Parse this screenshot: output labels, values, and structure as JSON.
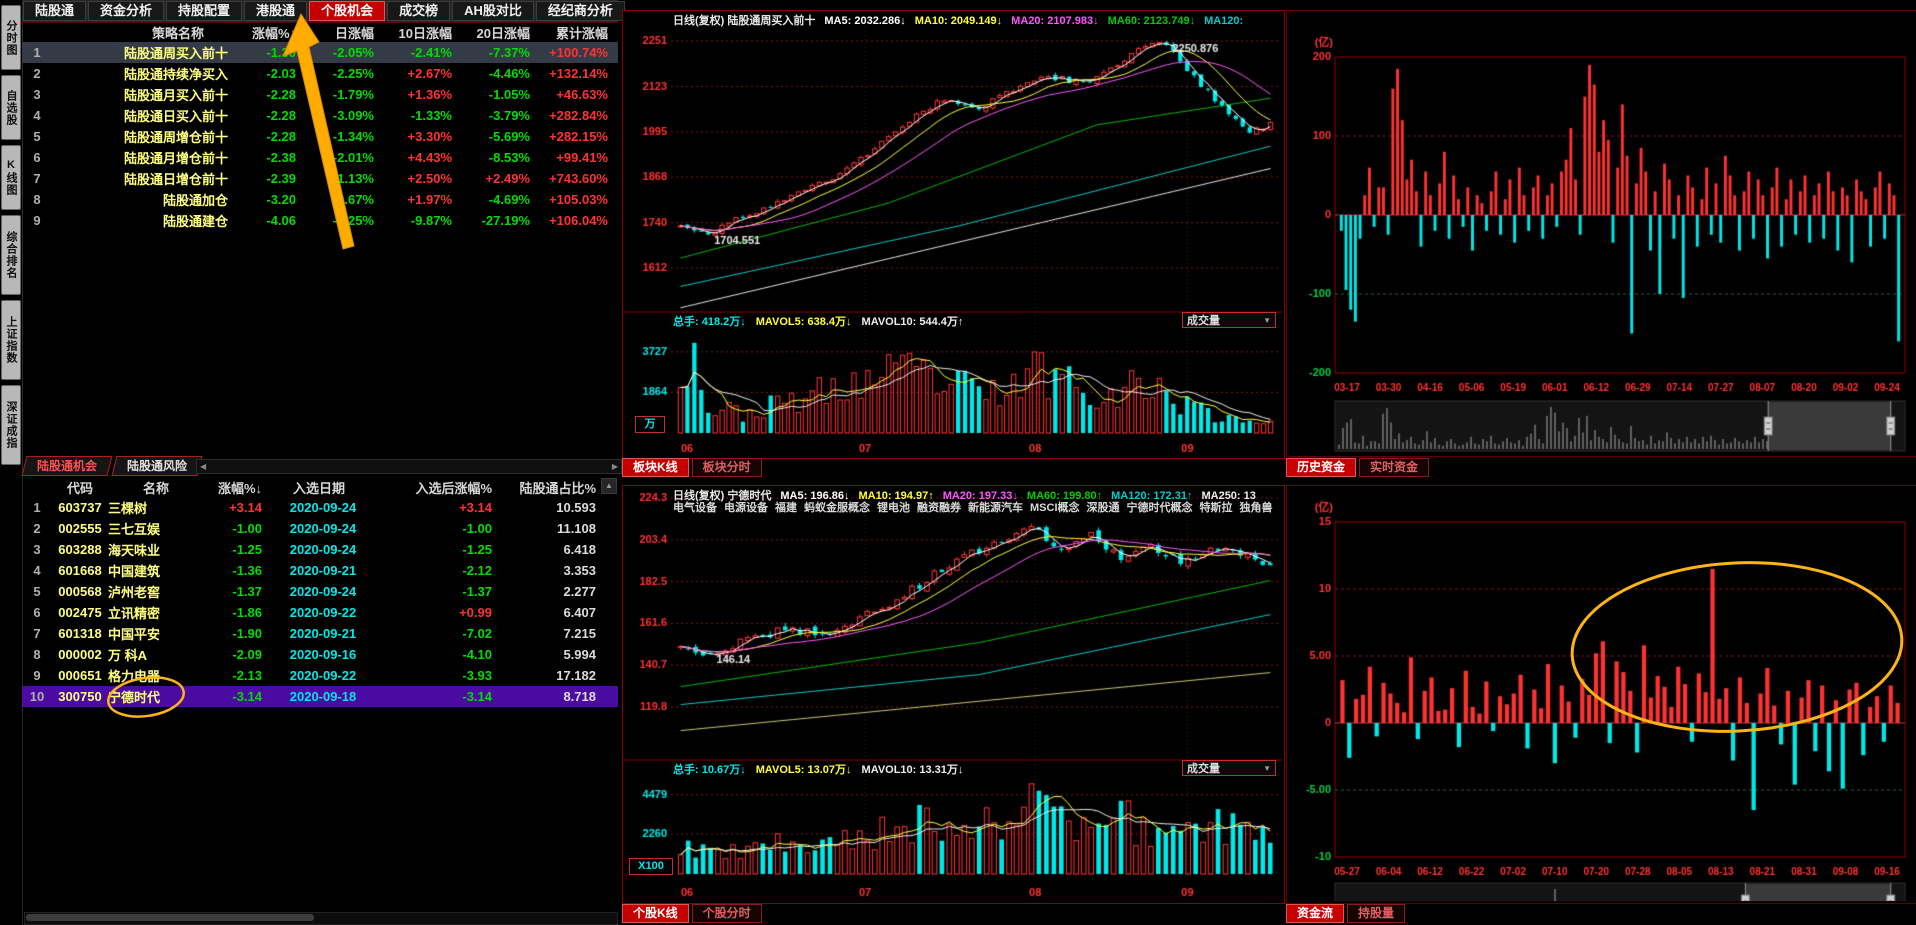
{
  "colors": {
    "positive": "#ff3232",
    "negative": "#00dd00",
    "cyan": "#00e8e8",
    "name_yellow": "#ffff80",
    "accent_red": "#c40000",
    "selected_row": "#343b46",
    "highlight_row": "#4b0aa2",
    "annotation": "#ffae00"
  },
  "sidebar": {
    "items": [
      "分时图",
      "自选股",
      "K线图",
      "综合排名",
      "上证指数",
      "深证成指"
    ]
  },
  "menubar": {
    "items": [
      "陆股通",
      "资金分析",
      "持股配置",
      "港股通",
      "个股机会",
      "成交榜",
      "AH股对比",
      "经纪商分析"
    ],
    "active": "个股机会"
  },
  "strategy_table": {
    "columns": [
      "策略名称",
      "涨幅%↓",
      "日涨幅",
      "10日涨幅",
      "20日涨幅",
      "累计涨幅"
    ],
    "selected_row": 1,
    "rows": [
      {
        "no": 1,
        "name": "陆股通周买入前十",
        "chg": "-1.30",
        "d1": "-2.05%",
        "d10": "-2.41%",
        "d20": "-7.37%",
        "total": "+100.74%"
      },
      {
        "no": 2,
        "name": "陆股通持续净买入",
        "chg": "-2.03",
        "d1": "-2.25%",
        "d10": "+2.67%",
        "d20": "-4.46%",
        "total": "+132.14%"
      },
      {
        "no": 3,
        "name": "陆股通月买入前十",
        "chg": "-2.28",
        "d1": "-1.79%",
        "d10": "+1.36%",
        "d20": "-1.05%",
        "total": "+46.63%"
      },
      {
        "no": 4,
        "name": "陆股通日买入前十",
        "chg": "-2.28",
        "d1": "-3.09%",
        "d10": "-1.33%",
        "d20": "-3.79%",
        "total": "+282.84%"
      },
      {
        "no": 5,
        "name": "陆股通周增仓前十",
        "chg": "-2.28",
        "d1": "-1.34%",
        "d10": "+3.30%",
        "d20": "-5.69%",
        "total": "+282.15%"
      },
      {
        "no": 6,
        "name": "陆股通月增仓前十",
        "chg": "-2.38",
        "d1": "-2.01%",
        "d10": "+4.43%",
        "d20": "-8.53%",
        "total": "+99.41%"
      },
      {
        "no": 7,
        "name": "陆股通日增仓前十",
        "chg": "-2.39",
        "d1": "-1.13%",
        "d10": "+2.50%",
        "d20": "+2.49%",
        "total": "+743.60%"
      },
      {
        "no": 8,
        "name": "陆股通加仓",
        "chg": "-3.20",
        "d1": "-2.67%",
        "d10": "+1.97%",
        "d20": "-4.69%",
        "total": "+105.03%"
      },
      {
        "no": 9,
        "name": "陆股通建仓",
        "chg": "-4.06",
        "d1": "-2.25%",
        "d10": "-9.87%",
        "d20": "-27.19%",
        "total": "+106.04%"
      }
    ]
  },
  "left_tabs": {
    "items": [
      "陆股通机会",
      "陆股通风险"
    ],
    "active": 0
  },
  "opportunity_table": {
    "columns": [
      "代码",
      "名称",
      "涨幅%↓",
      "入选日期",
      "入选后涨幅%",
      "陆股通占比%"
    ],
    "selected_row": 10,
    "rows": [
      {
        "no": 1,
        "code": "603737",
        "name": "三棵树",
        "chg": "+3.14",
        "date": "2020-09-24",
        "after": "+3.14",
        "ratio": "10.593"
      },
      {
        "no": 2,
        "code": "002555",
        "name": "三七互娱",
        "chg": "-1.00",
        "date": "2020-09-24",
        "after": "-1.00",
        "ratio": "11.108"
      },
      {
        "no": 3,
        "code": "603288",
        "name": "海天味业",
        "chg": "-1.25",
        "date": "2020-09-24",
        "after": "-1.25",
        "ratio": "6.418"
      },
      {
        "no": 4,
        "code": "601668",
        "name": "中国建筑",
        "chg": "-1.36",
        "date": "2020-09-21",
        "after": "-2.12",
        "ratio": "3.353"
      },
      {
        "no": 5,
        "code": "000568",
        "name": "泸州老窖",
        "chg": "-1.37",
        "date": "2020-09-24",
        "after": "-1.37",
        "ratio": "2.277"
      },
      {
        "no": 6,
        "code": "002475",
        "name": "立讯精密",
        "chg": "-1.86",
        "date": "2020-09-22",
        "after": "+0.99",
        "ratio": "6.407"
      },
      {
        "no": 7,
        "code": "601318",
        "name": "中国平安",
        "chg": "-1.90",
        "date": "2020-09-21",
        "after": "-7.02",
        "ratio": "7.215"
      },
      {
        "no": 8,
        "code": "000002",
        "name": "万 科A",
        "chg": "-2.09",
        "date": "2020-09-16",
        "after": "-4.10",
        "ratio": "5.994"
      },
      {
        "no": 9,
        "code": "000651",
        "name": "格力电器",
        "chg": "-2.13",
        "date": "2020-09-22",
        "after": "-3.93",
        "ratio": "17.182"
      },
      {
        "no": 10,
        "code": "300750",
        "name": "宁德时代",
        "chg": "-3.14",
        "date": "2020-09-18",
        "after": "-3.14",
        "ratio": "8.718"
      }
    ]
  },
  "mid_top_chart": {
    "title_tokens": [
      {
        "text": "日线(复权) 陆股通周买入前十",
        "color": "#e8e8e8"
      },
      {
        "text": "MA5: 2032.286↓",
        "color": "#ffffff"
      },
      {
        "text": "MA10: 2049.149↓",
        "color": "#ffff33"
      },
      {
        "text": "MA20: 2107.983↓",
        "color": "#ff55ff"
      },
      {
        "text": "MA60: 2123.749↓",
        "color": "#00cc00"
      },
      {
        "text": "MA120:",
        "color": "#00cccc"
      }
    ],
    "vol_tokens": [
      {
        "text": "总手: 418.2万↓",
        "color": "#00e8e8"
      },
      {
        "text": "MAVOL5: 638.4万↓",
        "color": "#ffff33"
      },
      {
        "text": "MAVOL10: 544.4万↑",
        "color": "#eeeeee"
      }
    ],
    "volume_dropdown": "成交量",
    "unit": "万",
    "yticks": [
      2251,
      2123,
      1995,
      1868,
      1740,
      1612
    ],
    "vol_yticks": [
      3727,
      1864
    ],
    "xticks": [
      {
        "label": "06",
        "f": 0.012
      },
      {
        "label": "07",
        "f": 0.315
      },
      {
        "label": "08",
        "f": 0.6
      },
      {
        "label": "09",
        "f": 0.855
      }
    ],
    "chart_data": {
      "type": "candlestick",
      "n": 86,
      "seed": 11,
      "jitter": 17,
      "keyframes": [
        [
          0,
          1730
        ],
        [
          4,
          1707
        ],
        [
          10,
          1765
        ],
        [
          16,
          1812
        ],
        [
          22,
          1862
        ],
        [
          28,
          1950
        ],
        [
          33,
          2030
        ],
        [
          38,
          2088
        ],
        [
          43,
          2062
        ],
        [
          48,
          2115
        ],
        [
          53,
          2150
        ],
        [
          58,
          2132
        ],
        [
          63,
          2185
        ],
        [
          67,
          2238
        ],
        [
          70,
          2246
        ],
        [
          74,
          2150
        ],
        [
          78,
          2062
        ],
        [
          82,
          2000
        ],
        [
          85,
          2015
        ]
      ],
      "pins": [
        {
          "i": 4,
          "type": "low",
          "v": 1704.551,
          "text": "1704.551"
        },
        {
          "i": 70,
          "type": "high",
          "v": 2250.876,
          "text": "2250.876"
        }
      ],
      "trend_lines": [
        {
          "keyframes": [
            [
              0,
              1640
            ],
            [
              30,
              1795
            ],
            [
              60,
              2015
            ],
            [
              85,
              2090
            ]
          ],
          "color": "#00bb00"
        },
        {
          "keyframes": [
            [
              0,
              1560
            ],
            [
              40,
              1730
            ],
            [
              85,
              1955
            ]
          ],
          "color": "#00cccc"
        },
        {
          "keyframes": [
            [
              0,
              1500
            ],
            [
              85,
              1892
            ]
          ],
          "color": "#e8e8e8"
        }
      ],
      "volume_envelope": [
        [
          0,
          3300
        ],
        [
          2,
          3700
        ],
        [
          4,
          1100
        ],
        [
          10,
          900
        ],
        [
          16,
          1500
        ],
        [
          22,
          1900
        ],
        [
          28,
          2500
        ],
        [
          34,
          2700
        ],
        [
          40,
          2100
        ],
        [
          46,
          1700
        ],
        [
          52,
          2950
        ],
        [
          56,
          2500
        ],
        [
          62,
          1800
        ],
        [
          68,
          2300
        ],
        [
          72,
          1400
        ],
        [
          78,
          750
        ],
        [
          85,
          520
        ]
      ],
      "vol_seed": 23
    }
  },
  "mid_top_tabs": {
    "items": [
      "板块K线",
      "板块分时"
    ],
    "active": 0
  },
  "mid_bottom_chart": {
    "title_tokens": [
      {
        "text": "日线(复权) 宁德时代",
        "color": "#e8e8e8"
      },
      {
        "text": "MA5: 196.86↓",
        "color": "#ffffff"
      },
      {
        "text": "MA10: 194.97↑",
        "color": "#ffff33"
      },
      {
        "text": "MA20: 197.33↓",
        "color": "#ff55ff"
      },
      {
        "text": "MA60: 199.80↑",
        "color": "#00cc00"
      },
      {
        "text": "MA120: 172.31↑",
        "color": "#00cccc"
      },
      {
        "text": "MA250: 13",
        "color": "#eeeeee"
      }
    ],
    "tags": [
      "电气设备",
      "电源设备",
      "福建",
      "蚂蚁金服概念",
      "锂电池",
      "融资融券",
      "新能源汽车",
      "MSCI概念",
      "深股通",
      "宁德时代概念",
      "特斯拉",
      "独角兽"
    ],
    "vol_tokens": [
      {
        "text": "总手: 10.67万↓",
        "color": "#00e8e8"
      },
      {
        "text": "MAVOL5: 13.07万↓",
        "color": "#ffff33"
      },
      {
        "text": "MAVOL10: 13.31万↓",
        "color": "#eeeeee"
      }
    ],
    "volume_dropdown": "成交量",
    "unit": "X100",
    "yticks": [
      224.3,
      203.4,
      182.5,
      161.6,
      140.7,
      119.8
    ],
    "vol_yticks": [
      4479,
      2260
    ],
    "xticks": [
      {
        "label": "06",
        "f": 0.012
      },
      {
        "label": "07",
        "f": 0.315
      },
      {
        "label": "08",
        "f": 0.6
      },
      {
        "label": "09",
        "f": 0.855
      }
    ],
    "chart_data": {
      "type": "candlestick",
      "n": 80,
      "seed": 5,
      "jitter": 4,
      "keyframes": [
        [
          0,
          149
        ],
        [
          4,
          147
        ],
        [
          9,
          153
        ],
        [
          14,
          159
        ],
        [
          19,
          156
        ],
        [
          24,
          164
        ],
        [
          29,
          173
        ],
        [
          34,
          186
        ],
        [
          39,
          197
        ],
        [
          44,
          205
        ],
        [
          47,
          211
        ],
        [
          51,
          198
        ],
        [
          55,
          207
        ],
        [
          59,
          194
        ],
        [
          63,
          201
        ],
        [
          67,
          192
        ],
        [
          71,
          199
        ],
        [
          75,
          197
        ],
        [
          79,
          191
        ]
      ],
      "pins": [
        {
          "i": 4,
          "type": "low",
          "v": 146.14,
          "text": "146.14"
        }
      ],
      "trend_lines": [
        {
          "keyframes": [
            [
              0,
              130
            ],
            [
              40,
              152
            ],
            [
              79,
              183
            ]
          ],
          "color": "#00bb00"
        },
        {
          "keyframes": [
            [
              0,
              121
            ],
            [
              40,
              136
            ],
            [
              79,
              166
            ]
          ],
          "color": "#00cccc"
        },
        {
          "keyframes": [
            [
              0,
              108
            ],
            [
              79,
              137
            ]
          ],
          "color": "#cccc77"
        }
      ],
      "volume_envelope": [
        [
          0,
          1500
        ],
        [
          6,
          1100
        ],
        [
          12,
          1700
        ],
        [
          18,
          1300
        ],
        [
          24,
          2100
        ],
        [
          30,
          2700
        ],
        [
          34,
          3300
        ],
        [
          38,
          2400
        ],
        [
          44,
          2900
        ],
        [
          48,
          4400
        ],
        [
          54,
          2300
        ],
        [
          60,
          3000
        ],
        [
          66,
          1900
        ],
        [
          72,
          2600
        ],
        [
          79,
          2100
        ]
      ],
      "vol_seed": 9
    }
  },
  "mid_bottom_tabs": {
    "items": [
      "个股K线",
      "个股分时"
    ],
    "active": 0
  },
  "right_top_chart": {
    "unit": "(亿)",
    "yticks": [
      "200",
      "100",
      "0",
      "-100",
      "-200"
    ],
    "dates": [
      "03-17",
      "03-30",
      "04-16",
      "05-06",
      "05-19",
      "06-01",
      "06-12",
      "06-29",
      "07-14",
      "07-27",
      "08-07",
      "08-20",
      "09-02",
      "09-24"
    ],
    "nav": {
      "h1": 0.76,
      "h2": 0.975
    },
    "chart_data": {
      "type": "bar",
      "unit": "亿",
      "values": [
        -20,
        -95,
        -120,
        -135,
        -30,
        25,
        60,
        -15,
        35,
        35,
        -25,
        160,
        185,
        120,
        45,
        70,
        30,
        -40,
        55,
        25,
        -20,
        40,
        80,
        -30,
        50,
        20,
        -15,
        35,
        -45,
        25,
        15,
        -20,
        30,
        55,
        -25,
        20,
        45,
        -35,
        60,
        25,
        -20,
        35,
        50,
        -30,
        25,
        40,
        -15,
        55,
        70,
        110,
        45,
        -25,
        150,
        190,
        165,
        80,
        120,
        95,
        -35,
        60,
        140,
        75,
        -150,
        40,
        85,
        55,
        -45,
        30,
        -100,
        65,
        45,
        -30,
        25,
        -105,
        50,
        35,
        -40,
        20,
        60,
        -25,
        40,
        -35,
        75,
        50,
        25,
        -45,
        30,
        55,
        -30,
        45,
        25,
        -55,
        35,
        60,
        -40,
        20,
        45,
        -25,
        30,
        50,
        -35,
        25,
        40,
        -30,
        55,
        30,
        -45,
        35,
        25,
        -60,
        45,
        30,
        20,
        -40,
        35,
        55,
        -30,
        40,
        25,
        -160
      ]
    }
  },
  "right_top_tabs": {
    "items": [
      "历史资金",
      "实时资金"
    ],
    "active": 0
  },
  "right_bottom_chart": {
    "unit": "(亿)",
    "yticks": [
      "15",
      "10",
      "5.00",
      "0",
      "-5.00",
      "-10"
    ],
    "dates": [
      "05-27",
      "06-04",
      "06-12",
      "06-22",
      "07-02",
      "07-10",
      "07-20",
      "07-28",
      "08-05",
      "08-13",
      "08-21",
      "08-31",
      "09-08",
      "09-16"
    ],
    "nav": {
      "h1": 0.72,
      "h2": 0.975
    },
    "chart_data": {
      "type": "bar",
      "unit": "亿",
      "values": [
        3.2,
        -2.6,
        1.8,
        2.1,
        4.2,
        -1.0,
        3.0,
        2.2,
        1.5,
        0.8,
        4.9,
        -1.2,
        2.4,
        3.4,
        0.9,
        1.0,
        2.6,
        -1.8,
        3.9,
        1.2,
        0.7,
        3.1,
        -0.6,
        2.0,
        1.4,
        2.2,
        3.6,
        -1.9,
        2.5,
        1.1,
        4.4,
        -3.0,
        2.8,
        1.6,
        -1.1,
        3.3,
        2.1,
        5.2,
        6.1,
        -1.5,
        4.6,
        3.8,
        2.4,
        -2.2,
        5.8,
        1.9,
        3.5,
        2.7,
        1.2,
        4.2,
        2.9,
        -1.4,
        3.7,
        2.3,
        11.5,
        1.8,
        2.6,
        -2.8,
        3.4,
        1.5,
        -6.5,
        2.2,
        4.1,
        1.3,
        -1.6,
        2.4,
        -4.6,
        1.9,
        3.2,
        -2.1,
        2.8,
        -3.6,
        1.7,
        -4.9,
        2.5,
        3.0,
        -2.4,
        1.2,
        2.0,
        -1.4,
        2.8,
        1.5
      ]
    }
  },
  "right_bottom_tabs": {
    "items": [
      "资金流",
      "持股量"
    ],
    "active": 0
  },
  "annotations": {
    "color": "#ffae00",
    "arrow_points_to": "个股机会",
    "circle_marks": "宁德时代",
    "ellipse_marks": "资金流 07-28 ~ 09-02"
  }
}
